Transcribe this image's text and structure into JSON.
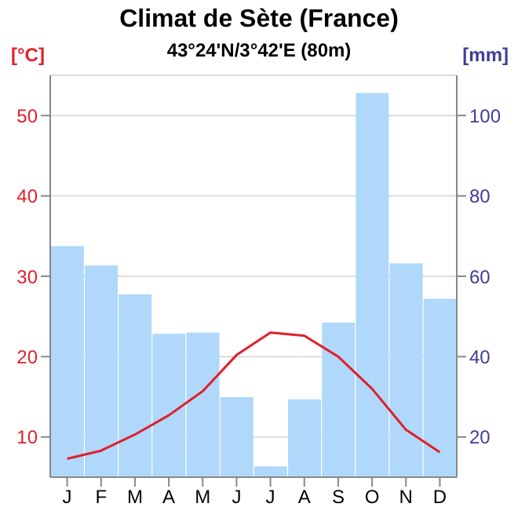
{
  "chart_data": {
    "type": "bar",
    "title": "Climat de Sète (France)",
    "subtitle": "43°24'N/3°42'E (80m)",
    "ylabel": "[°C]",
    "y2label": "[mm]",
    "categories": [
      "J",
      "F",
      "M",
      "A",
      "M",
      "J",
      "J",
      "A",
      "S",
      "O",
      "N",
      "D"
    ],
    "series": [
      {
        "axis": "y2",
        "color": "#b0d8fa",
        "values": [
          67.5,
          62.7,
          55.5,
          45.7,
          46.0,
          29.9,
          12.7,
          29.4,
          48.5,
          105.6,
          63.2,
          54.4
        ]
      },
      {
        "type": "line",
        "axis": "y",
        "color": "#e0202a",
        "values": [
          7.3,
          8.3,
          10.3,
          12.7,
          15.7,
          20.2,
          23.0,
          22.6,
          20.0,
          16.0,
          10.9,
          8.1
        ]
      }
    ],
    "ylim": [
      5,
      55
    ],
    "yticks": [
      10,
      20,
      30,
      40,
      50
    ],
    "y2lim": [
      10,
      110
    ],
    "y2ticks": [
      20,
      40,
      60,
      80,
      100
    ],
    "grid": "y",
    "legend": false,
    "marker": "none"
  }
}
